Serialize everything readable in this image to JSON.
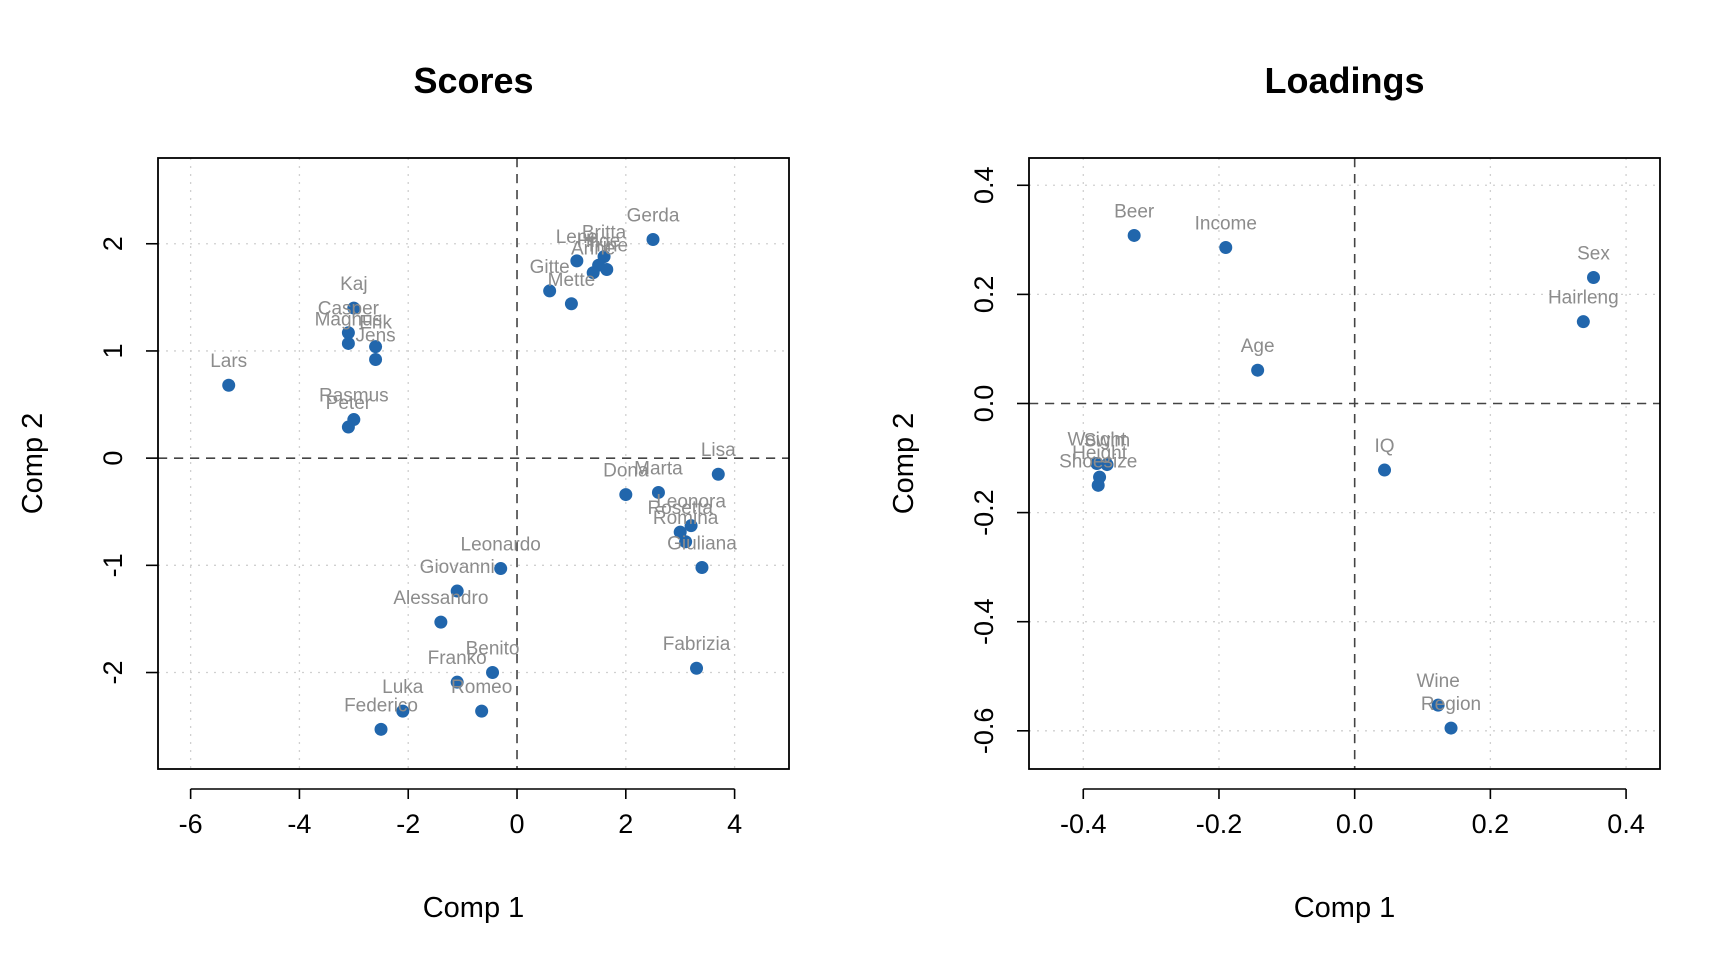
{
  "chart_data": [
    {
      "type": "scatter",
      "title": "Scores",
      "xlabel": "Comp 1",
      "ylabel": "Comp 2",
      "xlim": [
        -6.6,
        5.0
      ],
      "ylim": [
        -2.9,
        2.8
      ],
      "xticks": [
        -6,
        -4,
        -2,
        0,
        2,
        4
      ],
      "yticks": [
        -2,
        -1,
        0,
        1,
        2
      ],
      "xtick_labels": [
        "-6",
        "-4",
        "-2",
        "0",
        "2",
        "4"
      ],
      "ytick_labels": [
        "-2",
        "-1",
        "0",
        "1",
        "2"
      ],
      "grid": true,
      "reference_lines": {
        "x": 0,
        "y": 0
      },
      "point_color": "#2166AC",
      "label_color": "#8c8c8c",
      "points": [
        {
          "label": "Lars",
          "x": -5.3,
          "y": 0.68
        },
        {
          "label": "Kaj",
          "x": -3.0,
          "y": 1.4
        },
        {
          "label": "Casper",
          "x": -3.1,
          "y": 1.17
        },
        {
          "label": "Magnus",
          "x": -3.1,
          "y": 1.07
        },
        {
          "label": "Erik",
          "x": -2.6,
          "y": 1.04
        },
        {
          "label": "Jens",
          "x": -2.6,
          "y": 0.92
        },
        {
          "label": "Rasmus",
          "x": -3.0,
          "y": 0.36
        },
        {
          "label": "Peter",
          "x": -3.1,
          "y": 0.29
        },
        {
          "label": "Gerda",
          "x": 2.5,
          "y": 2.04
        },
        {
          "label": "Britta",
          "x": 1.6,
          "y": 1.88
        },
        {
          "label": "Lene",
          "x": 1.1,
          "y": 1.84
        },
        {
          "label": "Hilde",
          "x": 1.5,
          "y": 1.8
        },
        {
          "label": "Trine",
          "x": 1.65,
          "y": 1.76
        },
        {
          "label": "Anne",
          "x": 1.4,
          "y": 1.73
        },
        {
          "label": "Gitte",
          "x": 0.6,
          "y": 1.56
        },
        {
          "label": "Mette",
          "x": 1.0,
          "y": 1.44
        },
        {
          "label": "Lisa",
          "x": 3.7,
          "y": -0.15
        },
        {
          "label": "Dona",
          "x": 2.0,
          "y": -0.34
        },
        {
          "label": "Marta",
          "x": 2.6,
          "y": -0.32
        },
        {
          "label": "Leonora",
          "x": 3.2,
          "y": -0.63
        },
        {
          "label": "Rosetta",
          "x": 3.0,
          "y": -0.69
        },
        {
          "label": "Romina",
          "x": 3.1,
          "y": -0.78
        },
        {
          "label": "Giuliana",
          "x": 3.4,
          "y": -1.02
        },
        {
          "label": "Leonardo",
          "x": -0.3,
          "y": -1.03
        },
        {
          "label": "Giovanni",
          "x": -1.1,
          "y": -1.24
        },
        {
          "label": "Alessandro",
          "x": -1.4,
          "y": -1.53
        },
        {
          "label": "Fabrizia",
          "x": 3.3,
          "y": -1.96
        },
        {
          "label": "Benito",
          "x": -0.45,
          "y": -2.0
        },
        {
          "label": "Franko",
          "x": -1.1,
          "y": -2.09
        },
        {
          "label": "Romeo",
          "x": -0.65,
          "y": -2.36
        },
        {
          "label": "Luka",
          "x": -2.1,
          "y": -2.36
        },
        {
          "label": "Federico",
          "x": -2.5,
          "y": -2.53
        }
      ]
    },
    {
      "type": "scatter",
      "title": "Loadings",
      "xlabel": "Comp 1",
      "ylabel": "Comp 2",
      "xlim": [
        -0.48,
        0.45
      ],
      "ylim": [
        -0.67,
        0.45
      ],
      "xticks": [
        -0.4,
        -0.2,
        0.0,
        0.2,
        0.4
      ],
      "yticks": [
        -0.6,
        -0.4,
        -0.2,
        0.0,
        0.2,
        0.4
      ],
      "xtick_labels": [
        "-0.4",
        "-0.2",
        "0.0",
        "0.2",
        "0.4"
      ],
      "ytick_labels": [
        "-0.6",
        "-0.4",
        "-0.2",
        "0.0",
        "0.2",
        "0.4"
      ],
      "grid": true,
      "reference_lines": {
        "x": 0,
        "y": 0
      },
      "point_color": "#2166AC",
      "label_color": "#8c8c8c",
      "points": [
        {
          "label": "Beer",
          "x": -0.325,
          "y": 0.308
        },
        {
          "label": "Income",
          "x": -0.19,
          "y": 0.286
        },
        {
          "label": "Sex",
          "x": 0.352,
          "y": 0.231
        },
        {
          "label": "Hairleng",
          "x": 0.337,
          "y": 0.15
        },
        {
          "label": "Age",
          "x": -0.143,
          "y": 0.061
        },
        {
          "label": "Weight",
          "x": -0.38,
          "y": -0.11
        },
        {
          "label": "Swim",
          "x": -0.365,
          "y": -0.112
        },
        {
          "label": "Height",
          "x": -0.376,
          "y": -0.135
        },
        {
          "label": "Shoesize",
          "x": -0.378,
          "y": -0.15
        },
        {
          "label": "IQ",
          "x": 0.044,
          "y": -0.122
        },
        {
          "label": "Wine",
          "x": 0.123,
          "y": -0.553
        },
        {
          "label": "Region",
          "x": 0.142,
          "y": -0.595
        }
      ]
    }
  ]
}
